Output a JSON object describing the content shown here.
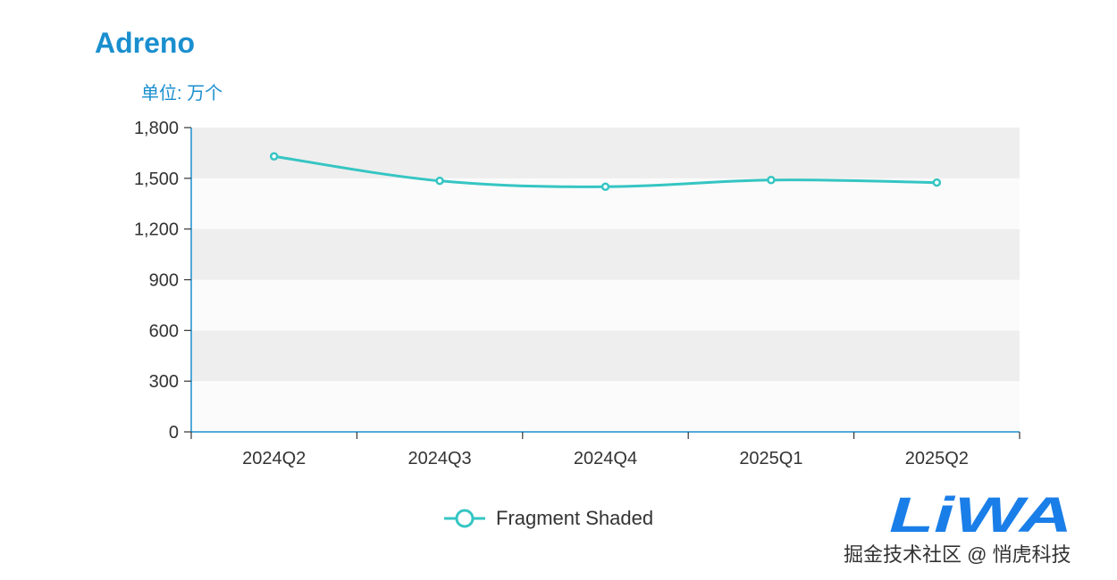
{
  "chart_data": {
    "type": "line",
    "title": "Adreno",
    "unit_label": "单位: 万个",
    "categories": [
      "2024Q2",
      "2024Q3",
      "2024Q4",
      "2025Q1",
      "2025Q2"
    ],
    "series": [
      {
        "name": "Fragment Shaded",
        "values": [
          1630,
          1485,
          1450,
          1490,
          1475
        ],
        "color": "#35c5c3"
      }
    ],
    "ylim": [
      0,
      1800
    ],
    "yticks": [
      0,
      300,
      600,
      900,
      1200,
      1500,
      1800
    ],
    "ytick_labels": [
      "0",
      "300",
      "600",
      "900",
      "1,200",
      "1,500",
      "1,800"
    ],
    "axis_color": "#1a8fcf",
    "band_colors": [
      "#fbfbfb",
      "#eeeeee"
    ],
    "smooth": true,
    "grid": false,
    "legend_position": "bottom-center"
  },
  "watermark": {
    "logo_text": "LiWA",
    "text": "掘金技术社区 @ 悄虎科技",
    "color": "#1a7ee8"
  }
}
